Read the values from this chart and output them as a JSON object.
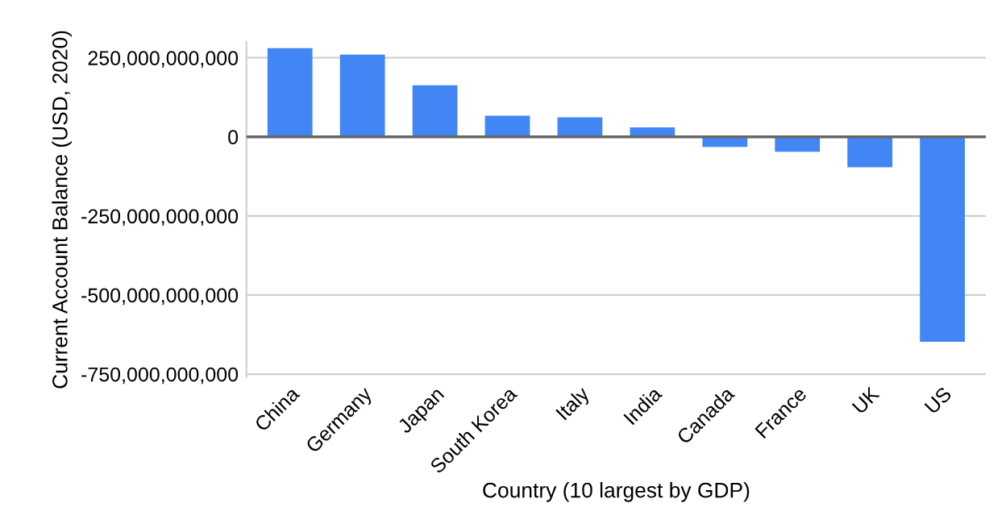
{
  "chart_data": {
    "type": "bar",
    "categories": [
      "China",
      "Germany",
      "Japan",
      "South Korea",
      "Italy",
      "India",
      "Canada",
      "France",
      "UK",
      "US"
    ],
    "values": [
      280000000000,
      260000000000,
      163000000000,
      67000000000,
      62000000000,
      30000000000,
      -32000000000,
      -47000000000,
      -96000000000,
      -648000000000
    ],
    "color": "#4285f4",
    "ylabel": "Current Account Balance (USD, 2020)",
    "xlabel": "Country (10 largest by GDP)",
    "ylim": [
      -760000000000,
      300000000000
    ],
    "yticks": [
      {
        "value": -750000000000,
        "label": "-750,000,000,000"
      },
      {
        "value": -500000000000,
        "label": "-500,000,000,000"
      },
      {
        "value": -250000000000,
        "label": "-250,000,000,000"
      },
      {
        "value": 0,
        "label": "0"
      },
      {
        "value": 250000000000,
        "label": "250,000,000,000"
      }
    ],
    "grid": "y"
  }
}
